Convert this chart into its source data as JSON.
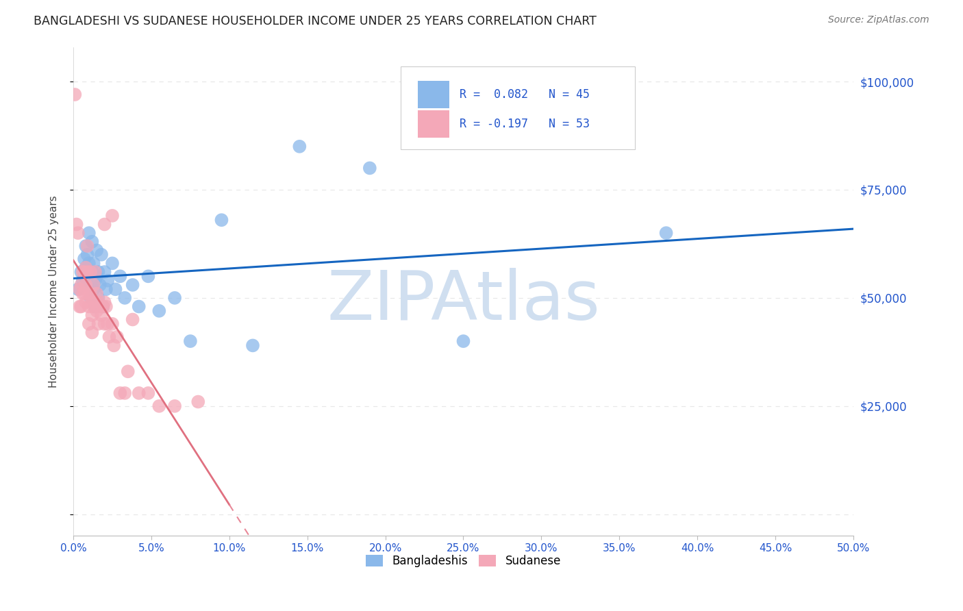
{
  "title": "BANGLADESHI VS SUDANESE HOUSEHOLDER INCOME UNDER 25 YEARS CORRELATION CHART",
  "source": "Source: ZipAtlas.com",
  "ylabel": "Householder Income Under 25 years",
  "xlim": [
    0.0,
    0.5
  ],
  "ylim": [
    -5000,
    108000
  ],
  "yticks": [
    0,
    25000,
    50000,
    75000,
    100000
  ],
  "bangladeshi_x": [
    0.003,
    0.005,
    0.006,
    0.007,
    0.007,
    0.008,
    0.008,
    0.009,
    0.009,
    0.01,
    0.01,
    0.011,
    0.011,
    0.012,
    0.012,
    0.013,
    0.013,
    0.014,
    0.014,
    0.015,
    0.015,
    0.016,
    0.016,
    0.017,
    0.018,
    0.019,
    0.02,
    0.021,
    0.022,
    0.025,
    0.027,
    0.03,
    0.033,
    0.038,
    0.042,
    0.048,
    0.055,
    0.065,
    0.075,
    0.095,
    0.115,
    0.145,
    0.19,
    0.25,
    0.38
  ],
  "bangladeshi_y": [
    52000,
    56000,
    54000,
    59000,
    55000,
    62000,
    57000,
    60000,
    53000,
    65000,
    58000,
    56000,
    50000,
    63000,
    56000,
    58000,
    52000,
    54000,
    48000,
    61000,
    55000,
    56000,
    50000,
    53000,
    60000,
    48000,
    56000,
    52000,
    54000,
    58000,
    52000,
    55000,
    50000,
    53000,
    48000,
    55000,
    47000,
    50000,
    40000,
    68000,
    39000,
    85000,
    80000,
    40000,
    65000
  ],
  "sudanese_x": [
    0.001,
    0.002,
    0.003,
    0.004,
    0.004,
    0.005,
    0.005,
    0.006,
    0.006,
    0.007,
    0.007,
    0.008,
    0.008,
    0.008,
    0.009,
    0.009,
    0.01,
    0.01,
    0.01,
    0.011,
    0.011,
    0.012,
    0.012,
    0.012,
    0.013,
    0.013,
    0.014,
    0.015,
    0.015,
    0.016,
    0.016,
    0.017,
    0.018,
    0.019,
    0.02,
    0.02,
    0.021,
    0.022,
    0.023,
    0.025,
    0.026,
    0.028,
    0.03,
    0.033,
    0.035,
    0.038,
    0.042,
    0.048,
    0.055,
    0.065,
    0.08,
    0.02,
    0.025
  ],
  "sudanese_y": [
    97000,
    67000,
    65000,
    52000,
    48000,
    53000,
    48000,
    56000,
    51000,
    56000,
    51000,
    57000,
    53000,
    49000,
    62000,
    56000,
    51000,
    48000,
    44000,
    56000,
    51000,
    49000,
    46000,
    42000,
    53000,
    48000,
    56000,
    51000,
    47000,
    44000,
    49000,
    48000,
    46000,
    48000,
    44000,
    49000,
    48000,
    44000,
    41000,
    44000,
    39000,
    41000,
    28000,
    28000,
    33000,
    45000,
    28000,
    28000,
    25000,
    25000,
    26000,
    67000,
    69000
  ],
  "bangladeshi_color": "#8ab8ea",
  "sudanese_color": "#f4a8b8",
  "bangladeshi_line_color": "#1565c0",
  "sudanese_line_color": "#e88898",
  "sudanese_line_solid_color": "#e07080",
  "legend_R_bangladeshi": "R =  0.082",
  "legend_N_bangladeshi": "N = 45",
  "legend_R_sudanese": "R = -0.197",
  "legend_N_sudanese": "N = 53",
  "watermark": "ZIPAtlas",
  "watermark_color": "#d0dff0",
  "grid_color": "#e8e8e8",
  "grid_dash": [
    4,
    4
  ],
  "title_color": "#222222",
  "axis_label_color": "#444444",
  "tick_color": "#2255cc",
  "source_color": "#777777",
  "background_color": "#ffffff"
}
